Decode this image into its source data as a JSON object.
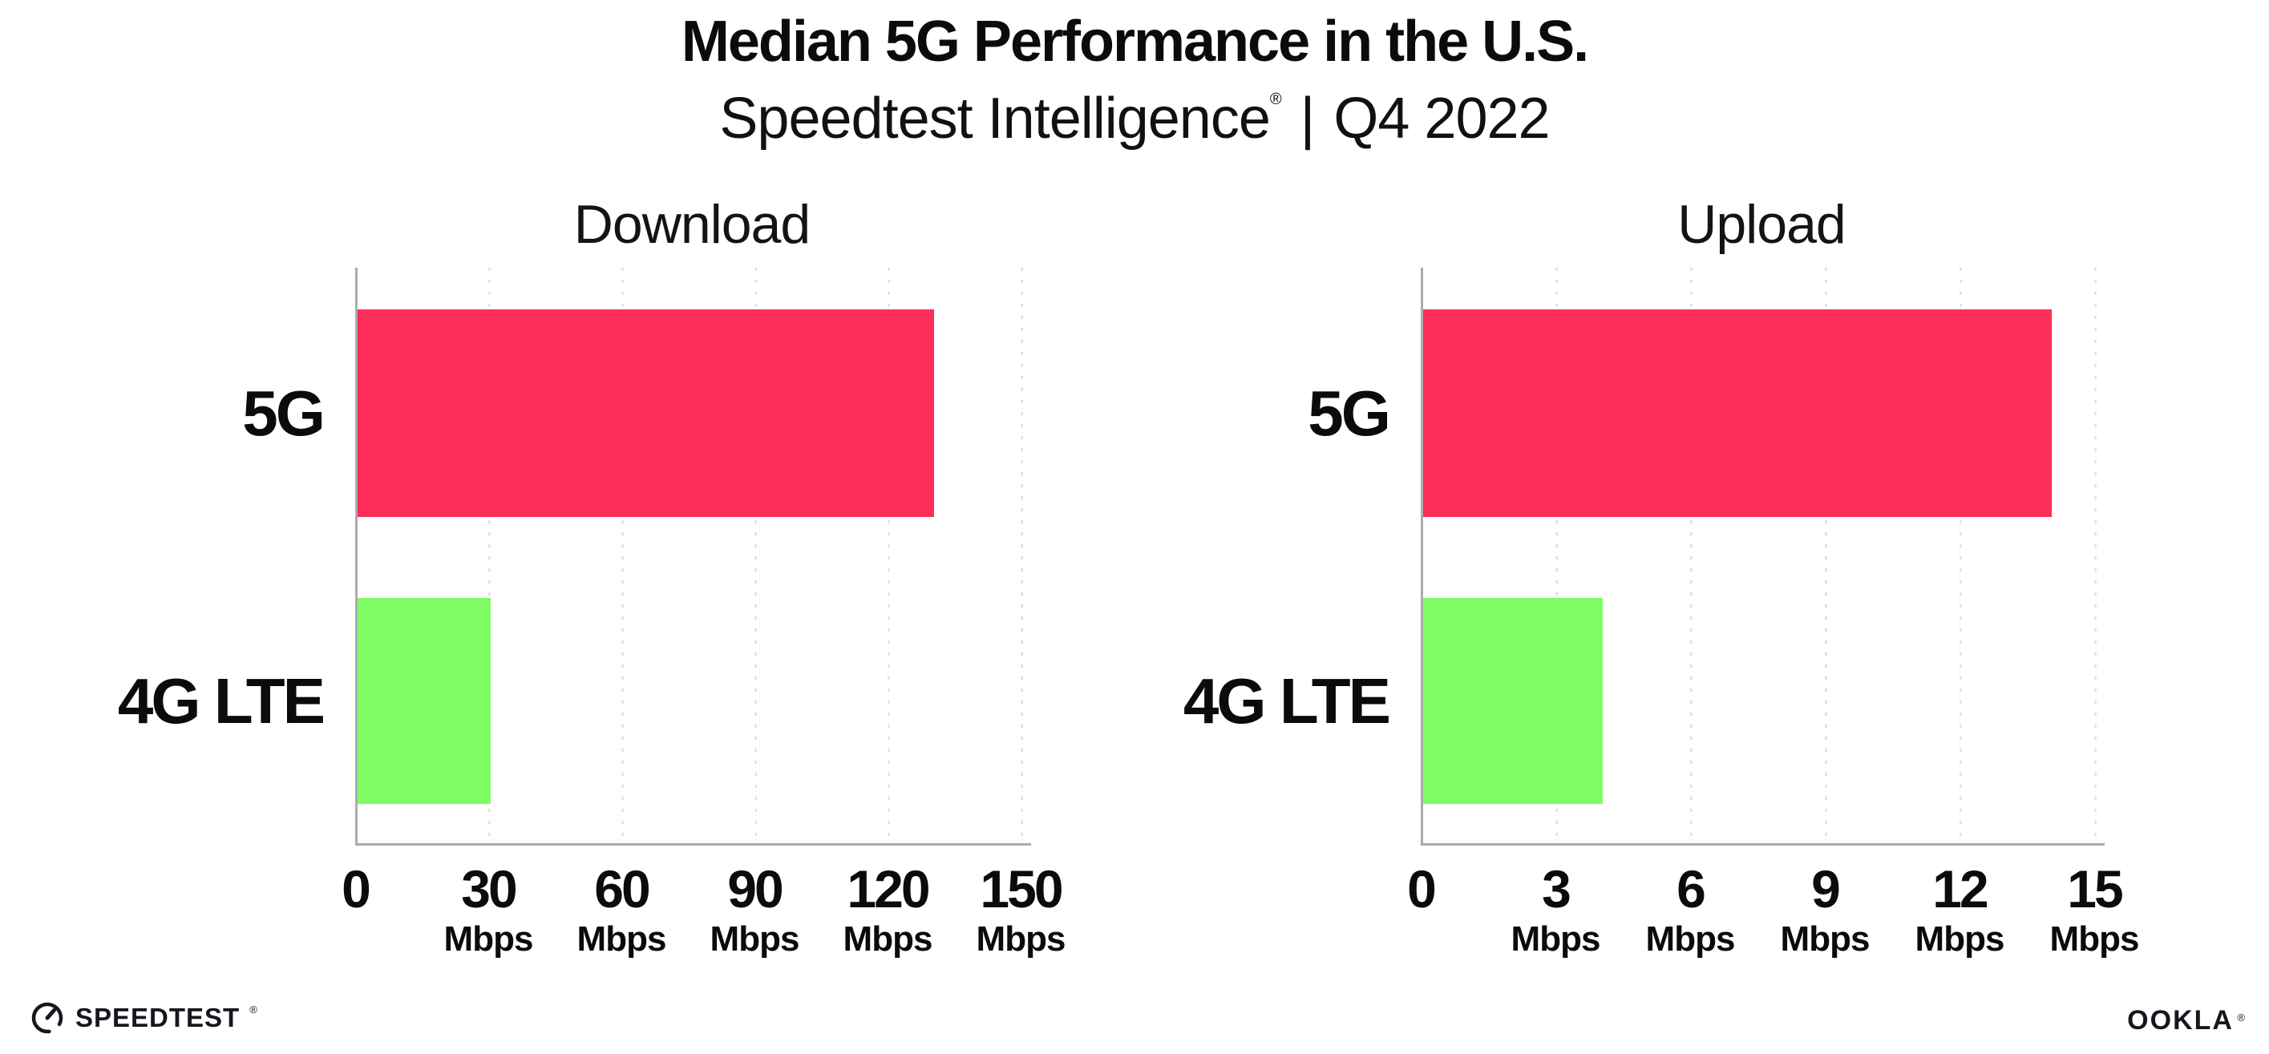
{
  "header": {
    "title": "Median 5G Performance in the U.S.",
    "subtitle": {
      "brand": "Speedtest Intelligence",
      "registered_mark": "®",
      "separator": "|",
      "period": "Q4 2022"
    }
  },
  "chart_data": [
    {
      "type": "bar",
      "orientation": "horizontal",
      "title": "Download",
      "categories": [
        "5G",
        "4G LTE"
      ],
      "values": [
        130,
        30
      ],
      "unit": "Mbps",
      "xlim": [
        0,
        150
      ],
      "xticks": [
        0,
        30,
        60,
        90,
        120,
        150
      ],
      "bar_colors": [
        "#fd2e58",
        "#7ffc64"
      ],
      "grid": "dotted-vertical",
      "legend": "none"
    },
    {
      "type": "bar",
      "orientation": "horizontal",
      "title": "Upload",
      "categories": [
        "5G",
        "4G LTE"
      ],
      "values": [
        14,
        4
      ],
      "unit": "Mbps",
      "xlim": [
        0,
        15
      ],
      "xticks": [
        0,
        3,
        6,
        9,
        12,
        15
      ],
      "bar_colors": [
        "#fd2e58",
        "#7ffc64"
      ],
      "grid": "dotted-vertical",
      "legend": "none"
    }
  ],
  "footer": {
    "speedtest": {
      "label": "SPEEDTEST",
      "mark": "®"
    },
    "ookla": {
      "label": "OOKLA",
      "mark": "®"
    }
  },
  "colors": {
    "bar_5g": "#fd2e58",
    "bar_4g_lte": "#7ffc64",
    "gridline": "#e3e3ed",
    "axis": "#abaab4",
    "text": "#0b0b0b",
    "logo": "#15161e",
    "background": "#ffffff"
  }
}
